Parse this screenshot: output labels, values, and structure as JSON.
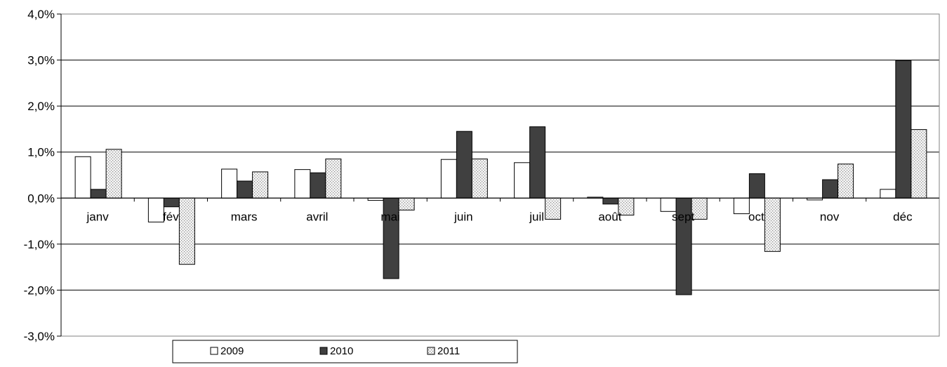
{
  "chart_data": {
    "type": "bar",
    "title": "",
    "xlabel": "",
    "ylabel": "",
    "ylim": [
      -0.03,
      0.04
    ],
    "yticks": [
      0.04,
      0.03,
      0.02,
      0.01,
      0.0,
      -0.01,
      -0.02,
      -0.03
    ],
    "ytick_labels": [
      "4,0%",
      "3,0%",
      "2,0%",
      "1,0%",
      "0,0%",
      "-1,0%",
      "-2,0%",
      "-3,0%"
    ],
    "grid": true,
    "legend_position": "bottom",
    "categories": [
      "janv",
      "fév",
      "mars",
      "avril",
      "mai",
      "juin",
      "juil",
      "août",
      "sept",
      "oct",
      "nov",
      "déc"
    ],
    "series": [
      {
        "name": "2009",
        "fill": "#ffffff",
        "pattern": "none",
        "values": [
          0.009,
          -0.0052,
          0.0063,
          0.0062,
          -0.0005,
          0.0084,
          0.0077,
          0.0002,
          -0.0029,
          -0.0034,
          -0.0004,
          0.0019
        ]
      },
      {
        "name": "2010",
        "fill": "#404040",
        "pattern": "none",
        "values": [
          0.0019,
          -0.0019,
          0.0037,
          0.0055,
          -0.0175,
          0.0145,
          0.0155,
          -0.0013,
          -0.021,
          0.0053,
          0.004,
          0.0299
        ]
      },
      {
        "name": "2011",
        "fill": "#eeeeee",
        "pattern": "dotted",
        "values": [
          0.0106,
          -0.0144,
          0.0057,
          0.0085,
          -0.0026,
          0.0085,
          -0.0046,
          -0.0037,
          -0.0046,
          -0.0116,
          0.0074,
          0.0149
        ]
      }
    ]
  }
}
